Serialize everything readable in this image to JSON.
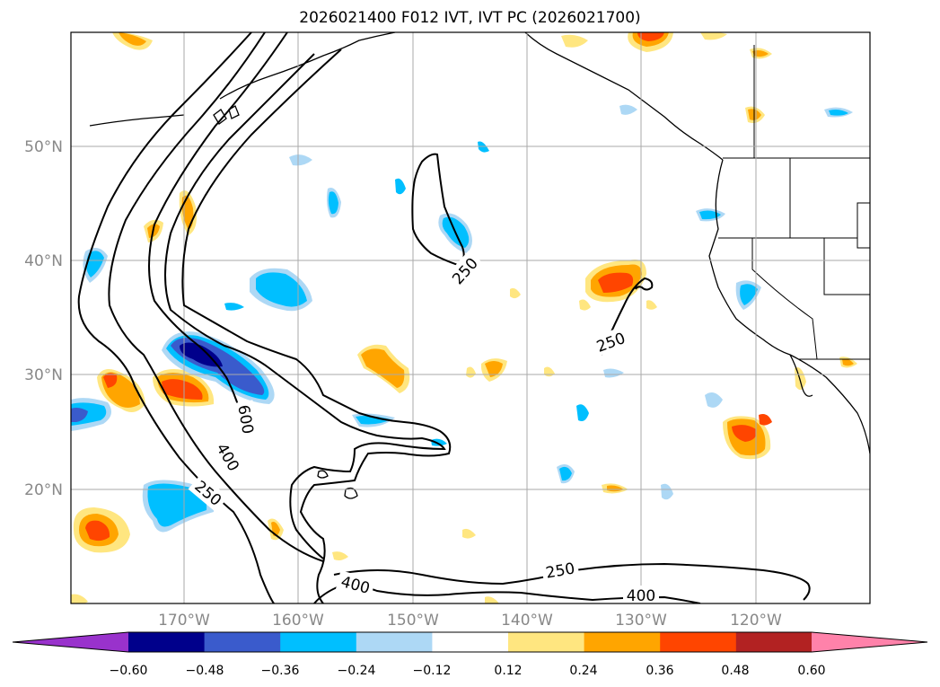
{
  "title": "2026021400 F012 IVT, IVT PC (2026021700)",
  "map": {
    "lat_labels": [
      "50°N",
      "40°N",
      "30°N",
      "20°N"
    ],
    "lon_labels": [
      "170°W",
      "160°W",
      "150°W",
      "140°W",
      "130°W",
      "120°W"
    ],
    "extent": {
      "lon_min": -180,
      "lon_max": -110,
      "lat_min": 10,
      "lat_max": 60
    }
  },
  "contours": {
    "levels": [
      "250",
      "400",
      "600"
    ],
    "labels": [
      "250",
      "250",
      "600",
      "400",
      "250",
      "400",
      "250",
      "400"
    ]
  },
  "colorbar": {
    "ticks": [
      "−0.60",
      "−0.48",
      "−0.36",
      "−0.24",
      "−0.12",
      "0.12",
      "0.24",
      "0.36",
      "0.48",
      "0.60"
    ],
    "colors": [
      "#9932cc",
      "#00008b",
      "#3a5bcc",
      "#00bfff",
      "#add8f5",
      "#ffffff",
      "#ffe680",
      "#ffa500",
      "#ff4500",
      "#b22222",
      "#ff82aa"
    ]
  }
}
